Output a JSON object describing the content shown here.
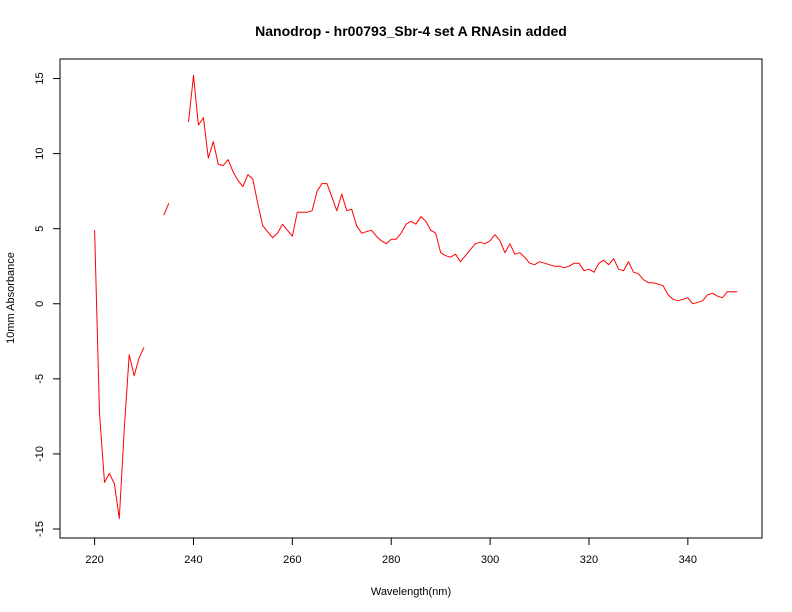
{
  "chart_data": {
    "type": "line",
    "title": "Nanodrop - hr00793_Sbr-4 set A RNAsin added",
    "xlabel": "Wavelength(nm)",
    "ylabel": "10mm Absorbance",
    "xlim": [
      213,
      355
    ],
    "ylim": [
      -15.6,
      16.3
    ],
    "xticks": [
      220,
      240,
      260,
      280,
      300,
      320,
      340
    ],
    "xtick_labels": [
      "220",
      "240",
      "260",
      "280",
      "300",
      "320",
      "340"
    ],
    "yticks": [
      -15,
      -10,
      -5,
      0,
      5,
      10,
      15
    ],
    "ytick_labels": [
      "-15",
      "-10",
      "-5",
      "0",
      "5",
      "10",
      "15"
    ],
    "grid": false,
    "color": "#ff0000",
    "series": [
      {
        "segments": [
          {
            "x": [
              220,
              221,
              222,
              223,
              224,
              225,
              226,
              227,
              228,
              229,
              230
            ],
            "y": [
              4.9,
              -7.3,
              -11.9,
              -11.3,
              -12.0,
              -14.3,
              -8.3,
              -3.4,
              -4.8,
              -3.6,
              -2.9
            ]
          },
          {
            "x": [
              234,
              235
            ],
            "y": [
              5.9,
              6.7
            ]
          },
          {
            "x": [
              239,
              240,
              241,
              242,
              243,
              244,
              245,
              246,
              247,
              248,
              249,
              250,
              251,
              252,
              253,
              254,
              255,
              256,
              257,
              258,
              259,
              260,
              261,
              262,
              263,
              264,
              265,
              266,
              267,
              268,
              269,
              270,
              271,
              272,
              273,
              274,
              275,
              276,
              277,
              278,
              279,
              280,
              281,
              282,
              283,
              284,
              285,
              286,
              287,
              288,
              289,
              290,
              291,
              292,
              293,
              294,
              295,
              296,
              297,
              298,
              299,
              300,
              301,
              302,
              303,
              304,
              305,
              306,
              307,
              308,
              309,
              310,
              311,
              312,
              313,
              314,
              315,
              316,
              317,
              318,
              319,
              320,
              321,
              322,
              323,
              324,
              325,
              326,
              327,
              328,
              329,
              330,
              331,
              332,
              333,
              334,
              335,
              336,
              337,
              338,
              339,
              340,
              341,
              342,
              343,
              344,
              345,
              346,
              347,
              348,
              349,
              350
            ],
            "y": [
              12.1,
              15.2,
              11.9,
              12.4,
              9.7,
              10.8,
              9.3,
              9.2,
              9.6,
              8.8,
              8.2,
              7.8,
              8.6,
              8.3,
              6.7,
              5.2,
              4.8,
              4.4,
              4.7,
              5.3,
              4.9,
              4.5,
              6.1,
              6.1,
              6.1,
              6.2,
              7.5,
              8.0,
              8.0,
              7.1,
              6.2,
              7.3,
              6.2,
              6.3,
              5.2,
              4.7,
              4.8,
              4.9,
              4.5,
              4.2,
              4.0,
              4.3,
              4.3,
              4.7,
              5.3,
              5.5,
              5.3,
              5.8,
              5.5,
              4.9,
              4.7,
              3.4,
              3.2,
              3.1,
              3.3,
              2.8,
              3.2,
              3.6,
              4.0,
              4.1,
              4.0,
              4.2,
              4.6,
              4.2,
              3.4,
              4.0,
              3.3,
              3.4,
              3.1,
              2.7,
              2.6,
              2.8,
              2.7,
              2.6,
              2.5,
              2.5,
              2.4,
              2.5,
              2.7,
              2.7,
              2.2,
              2.3,
              2.1,
              2.7,
              2.9,
              2.6,
              3.0,
              2.3,
              2.2,
              2.8,
              2.1,
              2.0,
              1.6,
              1.4,
              1.4,
              1.3,
              1.2,
              0.6,
              0.3,
              0.2,
              0.3,
              0.4,
              0.0,
              0.1,
              0.2,
              0.6,
              0.7,
              0.5,
              0.4,
              0.8,
              0.8,
              0.8
            ]
          }
        ]
      }
    ]
  }
}
